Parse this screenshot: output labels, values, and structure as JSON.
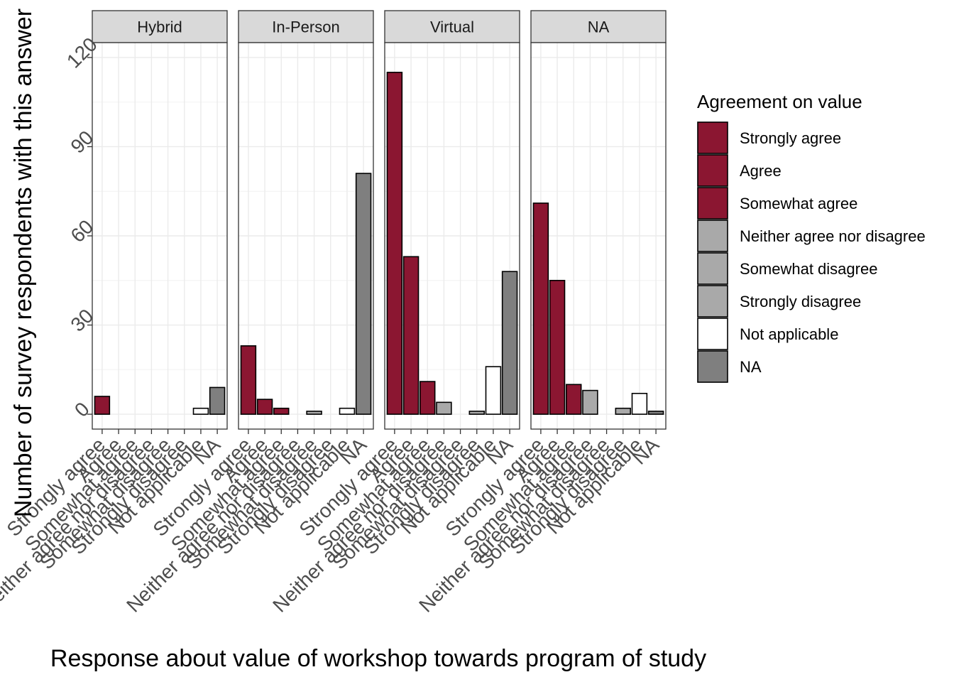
{
  "chart_data": {
    "type": "bar",
    "facet_variable_panels": [
      "Hybrid",
      "In-Person",
      "Virtual",
      "NA"
    ],
    "categories": [
      "Strongly agree",
      "Agree",
      "Somewhat agree",
      "Neither agree nor disagree",
      "Somewhat disagree",
      "Strongly disagree",
      "Not applicable",
      "NA"
    ],
    "xlabel": "Response about value of workshop towards program of study",
    "ylabel": "Number of survey respondents with this answer",
    "ylim": [
      -5,
      125
    ],
    "yticks": [
      0,
      30,
      60,
      90,
      120
    ],
    "grid": true,
    "legend": {
      "title": "Agreement on value",
      "placement": "right",
      "entries": [
        {
          "label": "Strongly agree",
          "color": "#8b1631"
        },
        {
          "label": "Agree",
          "color": "#8b1631"
        },
        {
          "label": "Somewhat agree",
          "color": "#8b1631"
        },
        {
          "label": "Neither agree nor disagree",
          "color": "#a9a9a9"
        },
        {
          "label": "Somewhat disagree",
          "color": "#a9a9a9"
        },
        {
          "label": "Strongly disagree",
          "color": "#a9a9a9"
        },
        {
          "label": "Not applicable",
          "color": "#ffffff"
        },
        {
          "label": "NA",
          "color": "#7f7f7f"
        }
      ]
    },
    "panels": [
      {
        "name": "Hybrid",
        "values": [
          6,
          0,
          0,
          0,
          0,
          0,
          2,
          9
        ]
      },
      {
        "name": "In-Person",
        "values": [
          23,
          5,
          2,
          0,
          1,
          0,
          2,
          81
        ]
      },
      {
        "name": "Virtual",
        "values": [
          115,
          53,
          11,
          4,
          0,
          1,
          16,
          48
        ]
      },
      {
        "name": "NA",
        "values": [
          71,
          45,
          10,
          8,
          0,
          2,
          7,
          1
        ]
      }
    ]
  }
}
